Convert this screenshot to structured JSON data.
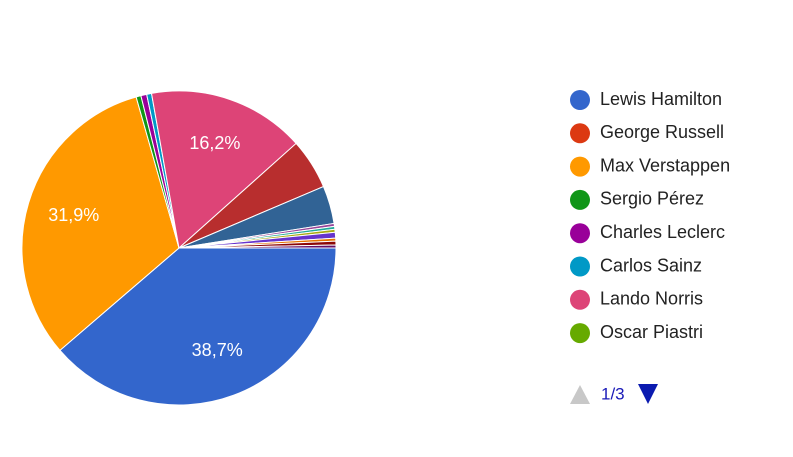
{
  "chart_data": {
    "type": "pie",
    "categories": [
      "Lewis Hamilton",
      "George Russell",
      "Max Verstappen",
      "Sergio Pérez",
      "Charles Leclerc",
      "Carlos Sainz",
      "Lando Norris",
      "Oscar Piastri",
      null,
      null,
      null,
      null,
      null,
      null,
      null,
      null,
      null
    ],
    "values": [
      38.7,
      0,
      31.9,
      0.5,
      0.6,
      0.5,
      16.2,
      0,
      5.2,
      3.9,
      0.3,
      0.3,
      0.3,
      0.6,
      0.3,
      0.4,
      0.3
    ],
    "value_labels": [
      "38,7%",
      null,
      "31,9%",
      null,
      null,
      null,
      "16,2%",
      null,
      null,
      null,
      null,
      null,
      null,
      null,
      null,
      null,
      null
    ],
    "colors": [
      "#3366cc",
      "#dc3912",
      "#ff9900",
      "#109618",
      "#990099",
      "#0099c6",
      "#dd4477",
      "#66aa00",
      "#b82e2e",
      "#316395",
      "#994499",
      "#22aa99",
      "#aaaa11",
      "#6633cc",
      "#e67300",
      "#8b0707",
      "#651067"
    ],
    "legend_page": "1/3"
  }
}
